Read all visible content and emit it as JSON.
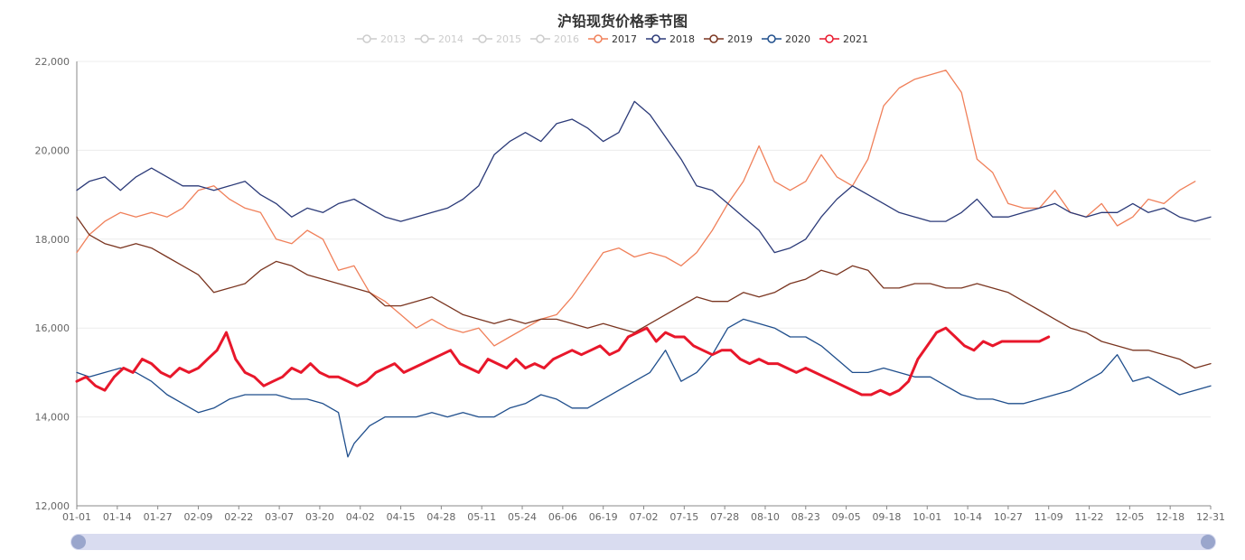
{
  "chart_data": {
    "type": "line",
    "title": "沪铅现货价格季节图",
    "xlabel": "",
    "ylabel": "",
    "ylim": [
      12000,
      22000
    ],
    "yticks": [
      12000,
      14000,
      16000,
      18000,
      20000,
      22000
    ],
    "ytick_labels": [
      "12,000",
      "14,000",
      "16,000",
      "18,000",
      "20,000",
      "22,000"
    ],
    "xticks": [
      1,
      14,
      27,
      40,
      53,
      66,
      79,
      92,
      105,
      118,
      131,
      144,
      157,
      170,
      183,
      196,
      209,
      222,
      235,
      248,
      261,
      274,
      287,
      300,
      313,
      326,
      339,
      352,
      365
    ],
    "xtick_labels": [
      "01-01",
      "01-14",
      "01-27",
      "02-09",
      "02-22",
      "03-07",
      "03-20",
      "04-02",
      "04-15",
      "04-28",
      "05-11",
      "05-24",
      "06-06",
      "06-19",
      "07-02",
      "07-15",
      "07-28",
      "08-10",
      "08-23",
      "09-05",
      "09-18",
      "10-01",
      "10-14",
      "10-27",
      "11-09",
      "11-22",
      "12-05",
      "12-18",
      "12-31"
    ],
    "x_range": [
      1,
      365
    ],
    "legend_position": "top-center",
    "series": [
      {
        "name": "2013",
        "visible": false,
        "color": "#cfcfcf",
        "x": [],
        "values": []
      },
      {
        "name": "2014",
        "visible": false,
        "color": "#cfcfcf",
        "x": [],
        "values": []
      },
      {
        "name": "2015",
        "visible": false,
        "color": "#cfcfcf",
        "x": [],
        "values": []
      },
      {
        "name": "2016",
        "visible": false,
        "color": "#cfcfcf",
        "x": [],
        "values": []
      },
      {
        "name": "2017",
        "visible": true,
        "color": "#f0805a",
        "width": 1.3,
        "x": [
          1,
          5,
          10,
          15,
          20,
          25,
          30,
          35,
          40,
          45,
          50,
          55,
          60,
          65,
          70,
          75,
          80,
          85,
          90,
          95,
          100,
          105,
          110,
          115,
          120,
          125,
          130,
          135,
          140,
          145,
          150,
          155,
          160,
          165,
          170,
          175,
          180,
          185,
          190,
          195,
          200,
          205,
          210,
          215,
          220,
          225,
          230,
          235,
          240,
          245,
          250,
          255,
          260,
          265,
          270,
          275,
          280,
          285,
          290,
          295,
          300,
          305,
          310,
          315,
          320,
          325,
          330,
          335,
          340,
          345,
          350,
          355,
          360
        ],
        "values": [
          17700,
          18100,
          18400,
          18600,
          18500,
          18600,
          18500,
          18700,
          19100,
          19200,
          18900,
          18700,
          18600,
          18000,
          17900,
          18200,
          18000,
          17300,
          17400,
          16800,
          16600,
          16300,
          16000,
          16200,
          16000,
          15900,
          16000,
          15600,
          15800,
          16000,
          16200,
          16300,
          16700,
          17200,
          17700,
          17800,
          17600,
          17700,
          17600,
          17400,
          17700,
          18200,
          18800,
          19300,
          20100,
          19300,
          19100,
          19300,
          19900,
          19400,
          19200,
          19800,
          21000,
          21400,
          21600,
          21700,
          21800,
          21300,
          19800,
          19500,
          18800,
          18700,
          18700,
          19100,
          18600,
          18500,
          18800,
          18300,
          18500,
          18900,
          18800,
          19100,
          19300
        ]
      },
      {
        "name": "2018",
        "visible": true,
        "color": "#2b3a78",
        "width": 1.3,
        "x": [
          1,
          5,
          10,
          15,
          20,
          25,
          30,
          35,
          40,
          45,
          50,
          55,
          60,
          65,
          70,
          75,
          80,
          85,
          90,
          95,
          100,
          105,
          110,
          115,
          120,
          125,
          130,
          135,
          140,
          145,
          150,
          155,
          160,
          165,
          170,
          175,
          180,
          185,
          190,
          195,
          200,
          205,
          210,
          215,
          220,
          225,
          230,
          235,
          240,
          245,
          250,
          255,
          260,
          265,
          270,
          275,
          280,
          285,
          290,
          295,
          300,
          305,
          310,
          315,
          320,
          325,
          330,
          335,
          340,
          345,
          350,
          355,
          360,
          365
        ],
        "values": [
          19100,
          19300,
          19400,
          19100,
          19400,
          19600,
          19400,
          19200,
          19200,
          19100,
          19200,
          19300,
          19000,
          18800,
          18500,
          18700,
          18600,
          18800,
          18900,
          18700,
          18500,
          18400,
          18500,
          18600,
          18700,
          18900,
          19200,
          19900,
          20200,
          20400,
          20200,
          20600,
          20700,
          20500,
          20200,
          20400,
          21100,
          20800,
          20300,
          19800,
          19200,
          19100,
          18800,
          18500,
          18200,
          17700,
          17800,
          18000,
          18500,
          18900,
          19200,
          19000,
          18800,
          18600,
          18500,
          18400,
          18400,
          18600,
          18900,
          18500,
          18500,
          18600,
          18700,
          18800,
          18600,
          18500,
          18600,
          18600,
          18800,
          18600,
          18700,
          18500,
          18400,
          18500
        ]
      },
      {
        "name": "2019",
        "visible": true,
        "color": "#7a3520",
        "width": 1.3,
        "x": [
          1,
          5,
          10,
          15,
          20,
          25,
          30,
          35,
          40,
          45,
          50,
          55,
          60,
          65,
          70,
          75,
          80,
          85,
          90,
          95,
          100,
          105,
          110,
          115,
          120,
          125,
          130,
          135,
          140,
          145,
          150,
          155,
          160,
          165,
          170,
          175,
          180,
          185,
          190,
          195,
          200,
          205,
          210,
          215,
          220,
          225,
          230,
          235,
          240,
          245,
          250,
          255,
          260,
          265,
          270,
          275,
          280,
          285,
          290,
          295,
          300,
          305,
          310,
          315,
          320,
          325,
          330,
          335,
          340,
          345,
          350,
          355,
          360,
          365
        ],
        "values": [
          18500,
          18100,
          17900,
          17800,
          17900,
          17800,
          17600,
          17400,
          17200,
          16800,
          16900,
          17000,
          17300,
          17500,
          17400,
          17200,
          17100,
          17000,
          16900,
          16800,
          16500,
          16500,
          16600,
          16700,
          16500,
          16300,
          16200,
          16100,
          16200,
          16100,
          16200,
          16200,
          16100,
          16000,
          16100,
          16000,
          15900,
          16100,
          16300,
          16500,
          16700,
          16600,
          16600,
          16800,
          16700,
          16800,
          17000,
          17100,
          17300,
          17200,
          17400,
          17300,
          16900,
          16900,
          17000,
          17000,
          16900,
          16900,
          17000,
          16900,
          16800,
          16600,
          16400,
          16200,
          16000,
          15900,
          15700,
          15600,
          15500,
          15500,
          15400,
          15300,
          15100,
          15200
        ]
      },
      {
        "name": "2020",
        "visible": true,
        "color": "#1f4e8c",
        "width": 1.3,
        "x": [
          1,
          5,
          10,
          15,
          20,
          25,
          30,
          35,
          40,
          45,
          50,
          55,
          60,
          65,
          70,
          75,
          80,
          85,
          88,
          90,
          95,
          100,
          105,
          110,
          115,
          120,
          125,
          130,
          135,
          140,
          145,
          150,
          155,
          160,
          165,
          170,
          175,
          180,
          185,
          190,
          195,
          200,
          205,
          210,
          215,
          220,
          225,
          230,
          235,
          240,
          245,
          250,
          255,
          260,
          265,
          270,
          275,
          280,
          285,
          290,
          295,
          300,
          305,
          310,
          315,
          320,
          325,
          330,
          335,
          340,
          345,
          350,
          355,
          360,
          365
        ],
        "values": [
          15000,
          14900,
          15000,
          15100,
          15000,
          14800,
          14500,
          14300,
          14100,
          14200,
          14400,
          14500,
          14500,
          14500,
          14400,
          14400,
          14300,
          14100,
          13100,
          13400,
          13800,
          14000,
          14000,
          14000,
          14100,
          14000,
          14100,
          14000,
          14000,
          14200,
          14300,
          14500,
          14400,
          14200,
          14200,
          14400,
          14600,
          14800,
          15000,
          15500,
          14800,
          15000,
          15400,
          16000,
          16200,
          16100,
          16000,
          15800,
          15800,
          15600,
          15300,
          15000,
          15000,
          15100,
          15000,
          14900,
          14900,
          14700,
          14500,
          14400,
          14400,
          14300,
          14300,
          14400,
          14500,
          14600,
          14800,
          15000,
          15400,
          14800,
          14900,
          14700,
          14500,
          14600,
          14700
        ]
      },
      {
        "name": "2021",
        "visible": true,
        "color": "#e8172b",
        "width": 3.0,
        "x": [
          1,
          4,
          7,
          10,
          13,
          16,
          19,
          22,
          25,
          28,
          31,
          34,
          37,
          40,
          43,
          46,
          49,
          52,
          55,
          58,
          61,
          64,
          67,
          70,
          73,
          76,
          79,
          82,
          85,
          88,
          91,
          94,
          97,
          100,
          103,
          106,
          109,
          112,
          115,
          118,
          121,
          124,
          127,
          130,
          133,
          136,
          139,
          142,
          145,
          148,
          151,
          154,
          157,
          160,
          163,
          166,
          169,
          172,
          175,
          178,
          181,
          184,
          187,
          190,
          193,
          196,
          199,
          202,
          205,
          208,
          211,
          214,
          217,
          220,
          223,
          226,
          229,
          232,
          235,
          238,
          241,
          244,
          247,
          250,
          253,
          256,
          259,
          262,
          265,
          268,
          271,
          274,
          277,
          280,
          283,
          286,
          289,
          292,
          295,
          298,
          301,
          304,
          307,
          310,
          313
        ],
        "values": [
          14800,
          14900,
          14700,
          14600,
          14900,
          15100,
          15000,
          15300,
          15200,
          15000,
          14900,
          15100,
          15000,
          15100,
          15300,
          15500,
          15900,
          15300,
          15000,
          14900,
          14700,
          14800,
          14900,
          15100,
          15000,
          15200,
          15000,
          14900,
          14900,
          14800,
          14700,
          14800,
          15000,
          15100,
          15200,
          15000,
          15100,
          15200,
          15300,
          15400,
          15500,
          15200,
          15100,
          15000,
          15300,
          15200,
          15100,
          15300,
          15100,
          15200,
          15100,
          15300,
          15400,
          15500,
          15400,
          15500,
          15600,
          15400,
          15500,
          15800,
          15900,
          16000,
          15700,
          15900,
          15800,
          15800,
          15600,
          15500,
          15400,
          15500,
          15500,
          15300,
          15200,
          15300,
          15200,
          15200,
          15100,
          15000,
          15100,
          15000,
          14900,
          14800,
          14700,
          14600,
          14500,
          14500,
          14600,
          14500,
          14600,
          14800,
          15300,
          15600,
          15900,
          16000,
          15800,
          15600,
          15500,
          15700,
          15600,
          15700,
          15700,
          15700,
          15700,
          15700,
          15800
        ]
      }
    ],
    "data_zoom": {
      "start": 0,
      "end": 100
    }
  }
}
